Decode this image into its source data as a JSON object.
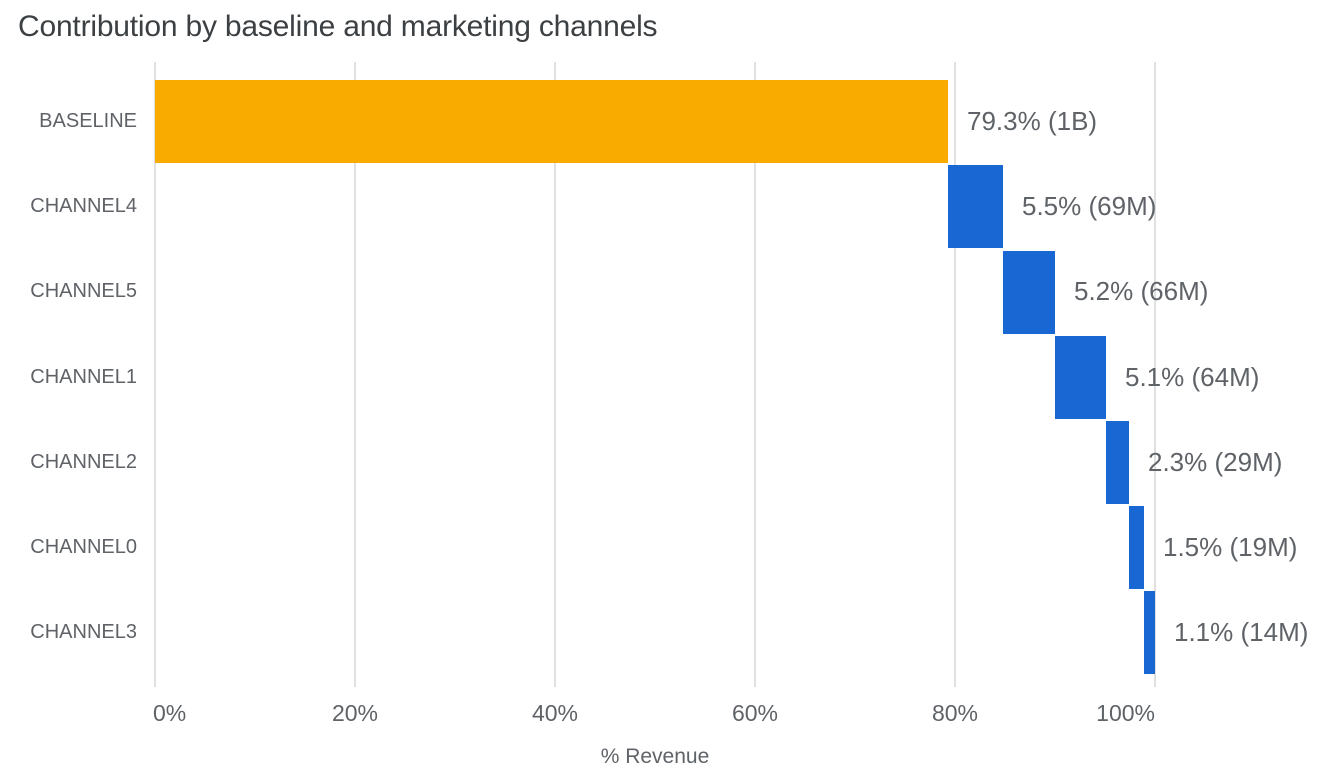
{
  "page": {
    "background": "#FFFFFF"
  },
  "chart_data": {
    "type": "bar",
    "subtype": "waterfall",
    "orientation": "horizontal",
    "title": "Contribution by baseline and marketing channels",
    "xlabel": "% Revenue",
    "xlim": [
      0,
      117.5
    ],
    "grid": "vertical-only",
    "legend": "none",
    "categories": [
      "BASELINE",
      "CHANNEL4",
      "CHANNEL5",
      "CHANNEL1",
      "CHANNEL2",
      "CHANNEL0",
      "CHANNEL3"
    ],
    "x_ticks": [
      {
        "value": 0,
        "label": "0%"
      },
      {
        "value": 20,
        "label": "20%"
      },
      {
        "value": 40,
        "label": "40%"
      },
      {
        "value": 60,
        "label": "60%"
      },
      {
        "value": 80,
        "label": "80%"
      },
      {
        "value": 100,
        "label": "100%"
      }
    ],
    "points": [
      {
        "category": "BASELINE",
        "role": "baseline",
        "start": 0,
        "value": 79.3,
        "end": 79.3,
        "label": "79.3% (1B)",
        "absolute": "1B",
        "color": "#F9AB00"
      },
      {
        "category": "CHANNEL4",
        "role": "channel",
        "start": 79.3,
        "value": 5.5,
        "end": 84.8,
        "label": "5.5% (69M)",
        "absolute": "69M",
        "color": "#1967D2"
      },
      {
        "category": "CHANNEL5",
        "role": "channel",
        "start": 84.8,
        "value": 5.2,
        "end": 90.0,
        "label": "5.2% (66M)",
        "absolute": "66M",
        "color": "#1967D2"
      },
      {
        "category": "CHANNEL1",
        "role": "channel",
        "start": 90.0,
        "value": 5.1,
        "end": 95.1,
        "label": "5.1% (64M)",
        "absolute": "64M",
        "color": "#1967D2"
      },
      {
        "category": "CHANNEL2",
        "role": "channel",
        "start": 95.1,
        "value": 2.3,
        "end": 97.4,
        "label": "2.3% (29M)",
        "absolute": "29M",
        "color": "#1967D2"
      },
      {
        "category": "CHANNEL0",
        "role": "channel",
        "start": 97.4,
        "value": 1.5,
        "end": 98.9,
        "label": "1.5% (19M)",
        "absolute": "19M",
        "color": "#1967D2"
      },
      {
        "category": "CHANNEL3",
        "role": "channel",
        "start": 98.9,
        "value": 1.1,
        "end": 100.0,
        "label": "1.1% (14M)",
        "absolute": "14M",
        "color": "#1967D2"
      }
    ],
    "colors": {
      "baseline_bar": "#F9AB00",
      "channel_bar": "#1967D2",
      "gridline": "#E0E0E0",
      "axis_text": "#5F6368",
      "value_text": "#5F6368",
      "title_text": "#3C4043"
    }
  }
}
